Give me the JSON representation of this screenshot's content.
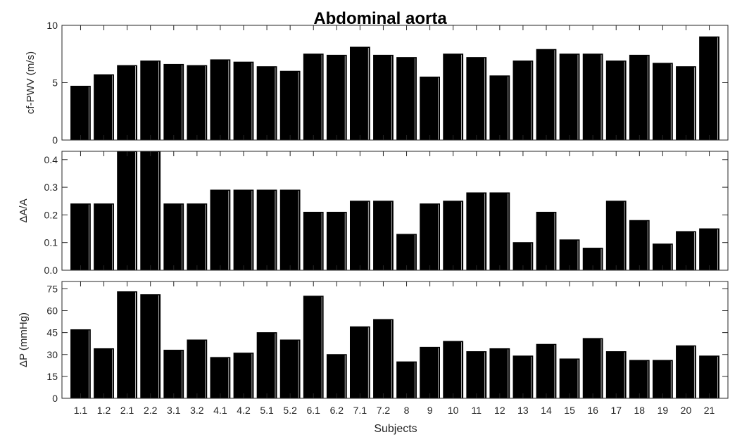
{
  "figure": {
    "title": "Abdominal aorta",
    "xlabel": "Subjects"
  },
  "chart_data": [
    {
      "type": "bar",
      "title": "Abdominal aorta",
      "xlabel": "",
      "ylabel": "cf-PWV (m/s)",
      "ylim": [
        0,
        10
      ],
      "yticks": [
        0,
        5,
        10
      ],
      "categories": [
        "1.1",
        "1.2",
        "2.1",
        "2.2",
        "3.1",
        "3.2",
        "4.1",
        "4.2",
        "5.1",
        "5.2",
        "6.1",
        "6.2",
        "7.1",
        "7.2",
        "8",
        "9",
        "10",
        "11",
        "12",
        "13",
        "14",
        "15",
        "16",
        "17",
        "18",
        "19",
        "20",
        "21"
      ],
      "values": [
        4.7,
        5.7,
        6.5,
        6.9,
        6.6,
        6.5,
        7.0,
        6.8,
        6.4,
        6.0,
        7.5,
        7.4,
        8.1,
        7.4,
        7.2,
        5.5,
        7.5,
        7.2,
        5.6,
        6.9,
        7.9,
        7.5,
        7.5,
        6.9,
        7.4,
        6.7,
        6.4,
        9.0
      ],
      "color": "#000000",
      "grid": false
    },
    {
      "type": "bar",
      "xlabel": "",
      "ylabel": "ΔA/A",
      "ylim": [
        0,
        0.43
      ],
      "yticks": [
        0.0,
        0.1,
        0.2,
        0.3,
        0.4
      ],
      "ytick_labels": [
        "0.0",
        "0.1",
        "0.2",
        "0.3",
        "0.4"
      ],
      "categories": [
        "1.1",
        "1.2",
        "2.1",
        "2.2",
        "3.1",
        "3.2",
        "4.1",
        "4.2",
        "5.1",
        "5.2",
        "6.1",
        "6.2",
        "7.1",
        "7.2",
        "8",
        "9",
        "10",
        "11",
        "12",
        "13",
        "14",
        "15",
        "16",
        "17",
        "18",
        "19",
        "20",
        "21"
      ],
      "values": [
        0.24,
        0.24,
        0.43,
        0.43,
        0.24,
        0.24,
        0.29,
        0.29,
        0.29,
        0.29,
        0.21,
        0.21,
        0.25,
        0.25,
        0.13,
        0.24,
        0.25,
        0.28,
        0.28,
        0.1,
        0.21,
        0.11,
        0.08,
        0.25,
        0.18,
        0.095,
        0.14,
        0.15
      ],
      "color": "#000000",
      "grid": false
    },
    {
      "type": "bar",
      "xlabel": "Subjects",
      "ylabel": "ΔP (mmHg)",
      "ylim": [
        0,
        80
      ],
      "yticks": [
        0,
        15,
        30,
        45,
        60,
        75
      ],
      "categories": [
        "1.1",
        "1.2",
        "2.1",
        "2.2",
        "3.1",
        "3.2",
        "4.1",
        "4.2",
        "5.1",
        "5.2",
        "6.1",
        "6.2",
        "7.1",
        "7.2",
        "8",
        "9",
        "10",
        "11",
        "12",
        "13",
        "14",
        "15",
        "16",
        "17",
        "18",
        "19",
        "20",
        "21"
      ],
      "values": [
        47,
        34,
        73,
        71,
        33,
        40,
        28,
        31,
        45,
        40,
        70,
        30,
        49,
        54,
        25,
        35,
        39,
        32,
        34,
        29,
        37,
        27,
        41,
        32,
        26,
        26,
        36,
        29
      ],
      "color": "#000000",
      "grid": false
    }
  ]
}
